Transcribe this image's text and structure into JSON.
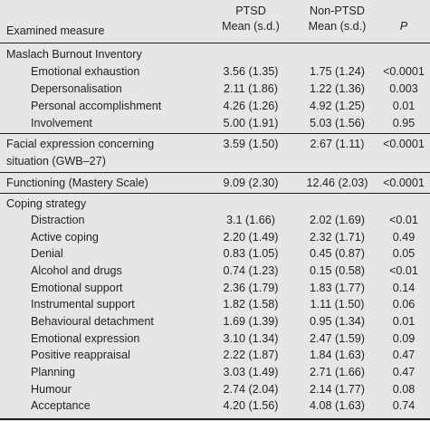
{
  "header": {
    "col_measure": "Examined measure",
    "col_ptsd_line1": "PTSD",
    "col_ptsd_line2": "Mean (s.d.)",
    "col_nonptsd_line1": "Non-PTSD",
    "col_nonptsd_line2": "Mean (s.d.)",
    "col_p": "P"
  },
  "sections": [
    {
      "title": "Maslach Burnout Inventory",
      "rows": [
        {
          "label": "Emotional exhaustion",
          "ptsd": "3.56 (1.35)",
          "non_ptsd": "1.75 (1.24)",
          "p": "<0.0001"
        },
        {
          "label": "Depersonalisation",
          "ptsd": "2.11 (1.86)",
          "non_ptsd": "1.22 (1.36)",
          "p": "0.003"
        },
        {
          "label": "Personal accomplishment",
          "ptsd": "4.26 (1.26)",
          "non_ptsd": "4.92 (1.25)",
          "p": "0.01"
        },
        {
          "label": "Involvement",
          "ptsd": "5.00 (1.91)",
          "non_ptsd": "5.03 (1.56)",
          "p": "0.95"
        }
      ]
    },
    {
      "title_line1": "Facial expression concerning",
      "title_line2": "situation (GWB–27)",
      "ptsd": "3.59 (1.50)",
      "non_ptsd": "2.67 (1.11)",
      "p": "<0.0001"
    },
    {
      "title": "Functioning (Mastery Scale)",
      "ptsd": "9.09 (2.30)",
      "non_ptsd": "12.46 (2.03)",
      "p": "<0.0001"
    },
    {
      "title": "Coping strategy",
      "rows": [
        {
          "label": "Distraction",
          "ptsd": "3.1 (1.66)",
          "non_ptsd": "2.02 (1.69)",
          "p": "<0.01"
        },
        {
          "label": "Active coping",
          "ptsd": "2.20 (1.49)",
          "non_ptsd": "2.32 (1.71)",
          "p": "0.49"
        },
        {
          "label": "Denial",
          "ptsd": "0.83 (1.05)",
          "non_ptsd": "0.45 (0.87)",
          "p": "0.05"
        },
        {
          "label": "Alcohol and drugs",
          "ptsd": "0.74 (1.23)",
          "non_ptsd": "0.15 (0.58)",
          "p": "<0.01"
        },
        {
          "label": "Emotional support",
          "ptsd": "2.36 (1.79)",
          "non_ptsd": "1.83 (1.77)",
          "p": "0.14"
        },
        {
          "label": "Instrumental support",
          "ptsd": "1.82 (1.58)",
          "non_ptsd": "1.11 (1.50)",
          "p": "0.06"
        },
        {
          "label": "Behavioural detachment",
          "ptsd": "1.69 (1.39)",
          "non_ptsd": "0.95 (1.34)",
          "p": "0.01"
        },
        {
          "label": "Emotional expression",
          "ptsd": "3.10 (1.34)",
          "non_ptsd": "2.47 (1.59)",
          "p": "0.09"
        },
        {
          "label": "Positive reappraisal",
          "ptsd": "2.22 (1.87)",
          "non_ptsd": "1.84 (1.63)",
          "p": "0.47"
        },
        {
          "label": "Planning",
          "ptsd": "3.03 (1.49)",
          "non_ptsd": "2.71 (1.66)",
          "p": "0.47"
        },
        {
          "label": "Humour",
          "ptsd": "2.74 (2.04)",
          "non_ptsd": "2.14 (1.77)",
          "p": "0.08"
        },
        {
          "label": "Acceptance",
          "ptsd": "4.20 (1.56)",
          "non_ptsd": "4.08 (1.63)",
          "p": "0.74"
        }
      ]
    }
  ]
}
